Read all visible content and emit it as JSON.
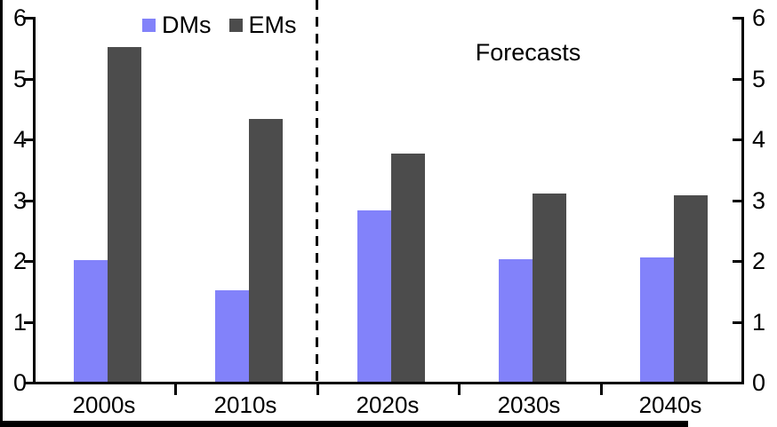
{
  "chart_data": {
    "type": "bar",
    "categories": [
      "2000s",
      "2010s",
      "2020s",
      "2030s",
      "2040s"
    ],
    "series": [
      {
        "name": "DMs",
        "color": "#8282FA",
        "values": [
          2.0,
          1.5,
          2.82,
          2.02,
          2.04
        ]
      },
      {
        "name": "EMs",
        "color": "#4C4C4C",
        "values": [
          5.5,
          4.32,
          3.75,
          3.1,
          3.07
        ]
      }
    ],
    "ylim": [
      0,
      6
    ],
    "yticks": [
      0,
      1,
      2,
      3,
      4,
      5,
      6
    ],
    "dual_y_axis": true,
    "grid": false,
    "legend_position": "top",
    "divider": {
      "after_category": "2010s",
      "style": "dashed"
    },
    "annotations": [
      {
        "text": "Forecasts",
        "region": "forecast-side"
      }
    ]
  },
  "colors": {
    "dms": "#8282FA",
    "ems": "#4C4C4C",
    "axis": "#000000",
    "background": "#FFFFFF"
  }
}
